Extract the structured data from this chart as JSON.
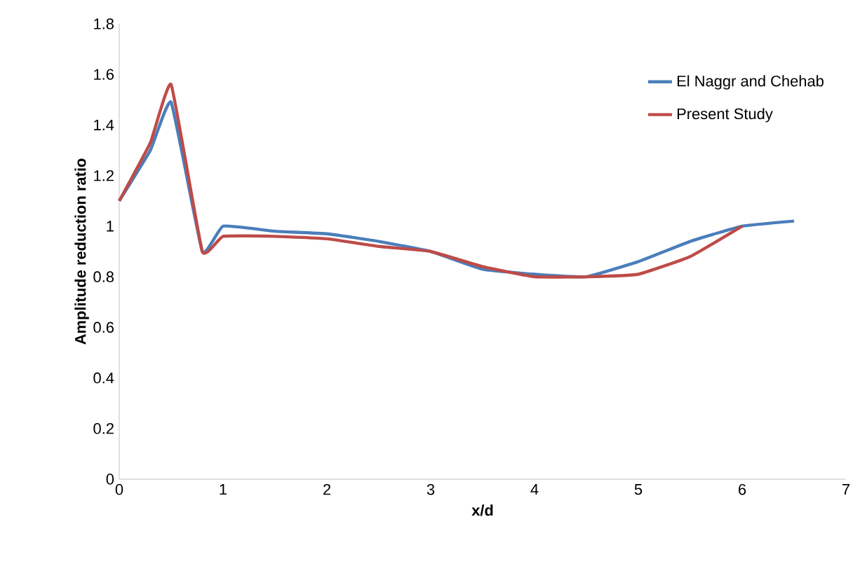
{
  "chart_data": {
    "type": "line",
    "xlabel": "x/d",
    "ylabel": "Amplitude reduction ratio",
    "xlim": [
      0,
      7
    ],
    "xticks": [
      0,
      1,
      2,
      3,
      4,
      5,
      6,
      7
    ],
    "ylim": [
      0,
      1.8
    ],
    "yticks": [
      0,
      0.2,
      0.4,
      0.6,
      0.8,
      1,
      1.2,
      1.4,
      1.6,
      1.8
    ],
    "legend": "top right",
    "grid": false,
    "marker": "none",
    "line_style": "solid",
    "series": [
      {
        "name": "El Naggr and Chehab",
        "color": "#4a7ebb",
        "x": [
          0,
          0.3,
          0.5,
          0.8,
          1.0,
          1.5,
          2,
          2.5,
          3,
          3.5,
          4,
          4.5,
          5,
          5.5,
          6,
          6.5
        ],
        "values": [
          1.1,
          1.3,
          1.49,
          0.9,
          1.0,
          0.98,
          0.97,
          0.94,
          0.9,
          0.83,
          0.81,
          0.8,
          0.86,
          0.94,
          1.0,
          1.02
        ]
      },
      {
        "name": "Present Study",
        "color": "#be4b48",
        "x": [
          0,
          0.3,
          0.5,
          0.8,
          1.0,
          1.5,
          2,
          2.5,
          3,
          3.5,
          4,
          4.5,
          5,
          5.5,
          6
        ],
        "values": [
          1.1,
          1.33,
          1.56,
          0.9,
          0.96,
          0.96,
          0.95,
          0.92,
          0.9,
          0.84,
          0.8,
          0.8,
          0.81,
          0.88,
          1.0
        ]
      }
    ]
  }
}
